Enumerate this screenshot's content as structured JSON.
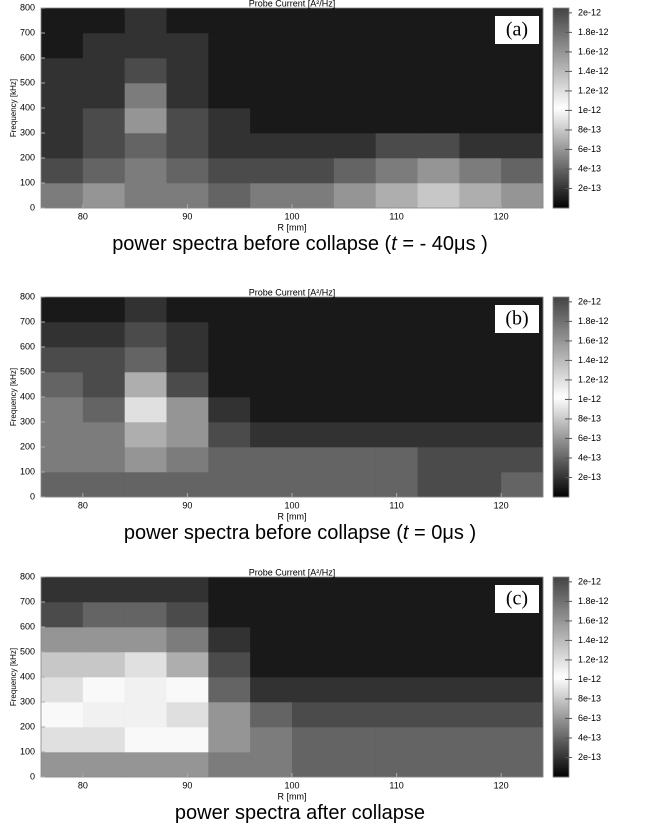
{
  "chart_data": [
    {
      "type": "heatmap",
      "title": "Probe Current [A²/Hz]",
      "xlabel": "R [mm]",
      "ylabel": "Frequency [kHz]",
      "panel_label": "(a)",
      "caption": [
        {
          "text": "power spectra before collapse (",
          "italic": false
        },
        {
          "text": "t",
          "italic": true
        },
        {
          "text": " = - 40μs )",
          "italic": false
        }
      ],
      "x": [
        78,
        82,
        86,
        90,
        94,
        98,
        102,
        106,
        110,
        114,
        118,
        122
      ],
      "y": [
        50,
        150,
        250,
        350,
        450,
        550,
        650,
        750
      ],
      "z": [
        [
          5e-13,
          6e-13,
          5e-13,
          5e-13,
          4e-13,
          5e-13,
          5e-13,
          6e-13,
          7e-13,
          8e-13,
          7e-13,
          6e-13
        ],
        [
          3e-13,
          4e-13,
          5e-13,
          4e-13,
          3e-13,
          3e-13,
          3e-13,
          4e-13,
          5e-13,
          6e-13,
          5e-13,
          4e-13
        ],
        [
          2e-13,
          3e-13,
          4e-13,
          3e-13,
          2e-13,
          2e-13,
          2e-13,
          2e-13,
          3e-13,
          3e-13,
          2e-13,
          2e-13
        ],
        [
          2e-13,
          3e-13,
          6e-13,
          3e-13,
          2e-13,
          1e-13,
          1e-13,
          1e-13,
          1e-13,
          1e-13,
          1e-13,
          1e-13
        ],
        [
          2e-13,
          2e-13,
          5e-13,
          2e-13,
          1e-13,
          1e-13,
          1e-13,
          1e-13,
          1e-13,
          1e-13,
          1e-13,
          1e-13
        ],
        [
          2e-13,
          2e-13,
          3e-13,
          2e-13,
          1e-13,
          1e-13,
          1e-13,
          1e-13,
          1e-13,
          1e-13,
          1e-13,
          1e-13
        ],
        [
          1e-13,
          2e-13,
          2e-13,
          2e-13,
          1e-13,
          1e-13,
          1e-13,
          1e-13,
          1e-13,
          1e-13,
          1e-13,
          1e-13
        ],
        [
          1e-13,
          1e-13,
          2e-13,
          1e-13,
          1e-13,
          1e-13,
          1e-13,
          1e-13,
          1e-13,
          1e-13,
          1e-13,
          1e-13
        ]
      ],
      "xlim": [
        76,
        124
      ],
      "ylim": [
        0,
        800
      ],
      "xticks": [
        80,
        90,
        100,
        110,
        120
      ],
      "yticks": [
        0,
        100,
        200,
        300,
        400,
        500,
        600,
        700,
        800
      ],
      "clim": [
        0,
        2.05e-12
      ],
      "cticks": [
        2e-13,
        4e-13,
        6e-13,
        8e-13,
        1e-12,
        1.2e-12,
        1.4e-12,
        1.6e-12,
        1.8e-12,
        2e-12
      ],
      "colormap": [
        "#000000",
        "#ffffff",
        "#444444"
      ]
    },
    {
      "type": "heatmap",
      "title": "Probe Current [A²/Hz]",
      "xlabel": "R [mm]",
      "ylabel": "Frequency [kHz]",
      "panel_label": "(b)",
      "caption": [
        {
          "text": "power spectra before collapse (",
          "italic": false
        },
        {
          "text": "t",
          "italic": true
        },
        {
          "text": " = 0μs )",
          "italic": false
        }
      ],
      "x": [
        78,
        82,
        86,
        90,
        94,
        98,
        102,
        106,
        110,
        114,
        118,
        122
      ],
      "y": [
        50,
        150,
        250,
        350,
        450,
        550,
        650,
        750
      ],
      "z": [
        [
          4e-13,
          4e-13,
          4e-13,
          4e-13,
          4e-13,
          4e-13,
          4e-13,
          4e-13,
          4e-13,
          3e-13,
          3e-13,
          4e-13
        ],
        [
          5e-13,
          5e-13,
          6e-13,
          5e-13,
          4e-13,
          4e-13,
          4e-13,
          4e-13,
          4e-13,
          3e-13,
          3e-13,
          3e-13
        ],
        [
          5e-13,
          5e-13,
          7e-13,
          6e-13,
          3e-13,
          2e-13,
          2e-13,
          2e-13,
          2e-13,
          2e-13,
          2e-13,
          2e-13
        ],
        [
          5e-13,
          4e-13,
          9e-13,
          6e-13,
          2e-13,
          1e-13,
          1e-13,
          1e-13,
          1e-13,
          1e-13,
          1e-13,
          1e-13
        ],
        [
          4e-13,
          3e-13,
          7e-13,
          3e-13,
          1e-13,
          1e-13,
          1e-13,
          1e-13,
          1e-13,
          1e-13,
          1e-13,
          1e-13
        ],
        [
          3e-13,
          3e-13,
          4e-13,
          2e-13,
          1e-13,
          1e-13,
          1e-13,
          1e-13,
          1e-13,
          1e-13,
          1e-13,
          1e-13
        ],
        [
          2e-13,
          2e-13,
          3e-13,
          2e-13,
          1e-13,
          1e-13,
          1e-13,
          1e-13,
          1e-13,
          1e-13,
          1e-13,
          1e-13
        ],
        [
          1e-13,
          1e-13,
          2e-13,
          1e-13,
          1e-13,
          1e-13,
          1e-13,
          1e-13,
          1e-13,
          1e-13,
          1e-13,
          1e-13
        ]
      ],
      "xlim": [
        76,
        124
      ],
      "ylim": [
        0,
        800
      ],
      "xticks": [
        80,
        90,
        100,
        110,
        120
      ],
      "yticks": [
        0,
        100,
        200,
        300,
        400,
        500,
        600,
        700,
        800
      ],
      "clim": [
        0,
        2.05e-12
      ],
      "cticks": [
        2e-13,
        4e-13,
        6e-13,
        8e-13,
        1e-12,
        1.2e-12,
        1.4e-12,
        1.6e-12,
        1.8e-12,
        2e-12
      ],
      "colormap": [
        "#000000",
        "#ffffff",
        "#444444"
      ]
    },
    {
      "type": "heatmap",
      "title": "Probe Current [A²/Hz]",
      "xlabel": "R [mm]",
      "ylabel": "Frequency [kHz]",
      "panel_label": "(c)",
      "caption": [
        {
          "text": "power spectra after collapse",
          "italic": false
        }
      ],
      "x": [
        78,
        82,
        86,
        90,
        94,
        98,
        102,
        106,
        110,
        114,
        118,
        122
      ],
      "y": [
        50,
        150,
        250,
        350,
        450,
        550,
        650,
        750
      ],
      "z": [
        [
          6e-13,
          6e-13,
          6e-13,
          6e-13,
          5e-13,
          5e-13,
          4e-13,
          4e-13,
          4e-13,
          4e-13,
          4e-13,
          4e-13
        ],
        [
          9e-13,
          9e-13,
          1e-12,
          1e-12,
          6e-13,
          5e-13,
          4e-13,
          4e-13,
          4e-13,
          4e-13,
          4e-13,
          4e-13
        ],
        [
          1e-12,
          1.1e-12,
          1.1e-12,
          1.2e-12,
          6e-13,
          4e-13,
          3e-13,
          3e-13,
          3e-13,
          3e-13,
          3e-13,
          3e-13
        ],
        [
          9e-13,
          1e-12,
          1.1e-12,
          1e-12,
          4e-13,
          2e-13,
          2e-13,
          2e-13,
          2e-13,
          2e-13,
          2e-13,
          2e-13
        ],
        [
          8e-13,
          8e-13,
          9e-13,
          7e-13,
          3e-13,
          1e-13,
          1e-13,
          1e-13,
          1e-13,
          1e-13,
          1e-13,
          1e-13
        ],
        [
          6e-13,
          6e-13,
          6e-13,
          5e-13,
          2e-13,
          1e-13,
          1e-13,
          1e-13,
          1e-13,
          1e-13,
          1e-13,
          1e-13
        ],
        [
          3e-13,
          4e-13,
          4e-13,
          3e-13,
          1e-13,
          1e-13,
          1e-13,
          1e-13,
          1e-13,
          1e-13,
          1e-13,
          1e-13
        ],
        [
          2e-13,
          2e-13,
          2e-13,
          2e-13,
          1e-13,
          1e-13,
          1e-13,
          1e-13,
          1e-13,
          1e-13,
          1e-13,
          1e-13
        ]
      ],
      "xlim": [
        76,
        124
      ],
      "ylim": [
        0,
        800
      ],
      "xticks": [
        80,
        90,
        100,
        110,
        120
      ],
      "yticks": [
        0,
        100,
        200,
        300,
        400,
        500,
        600,
        700,
        800
      ],
      "clim": [
        0,
        2.05e-12
      ],
      "cticks": [
        2e-13,
        4e-13,
        6e-13,
        8e-13,
        1e-12,
        1.2e-12,
        1.4e-12,
        1.6e-12,
        1.8e-12,
        2e-12
      ],
      "colormap": [
        "#000000",
        "#ffffff",
        "#444444"
      ]
    }
  ]
}
